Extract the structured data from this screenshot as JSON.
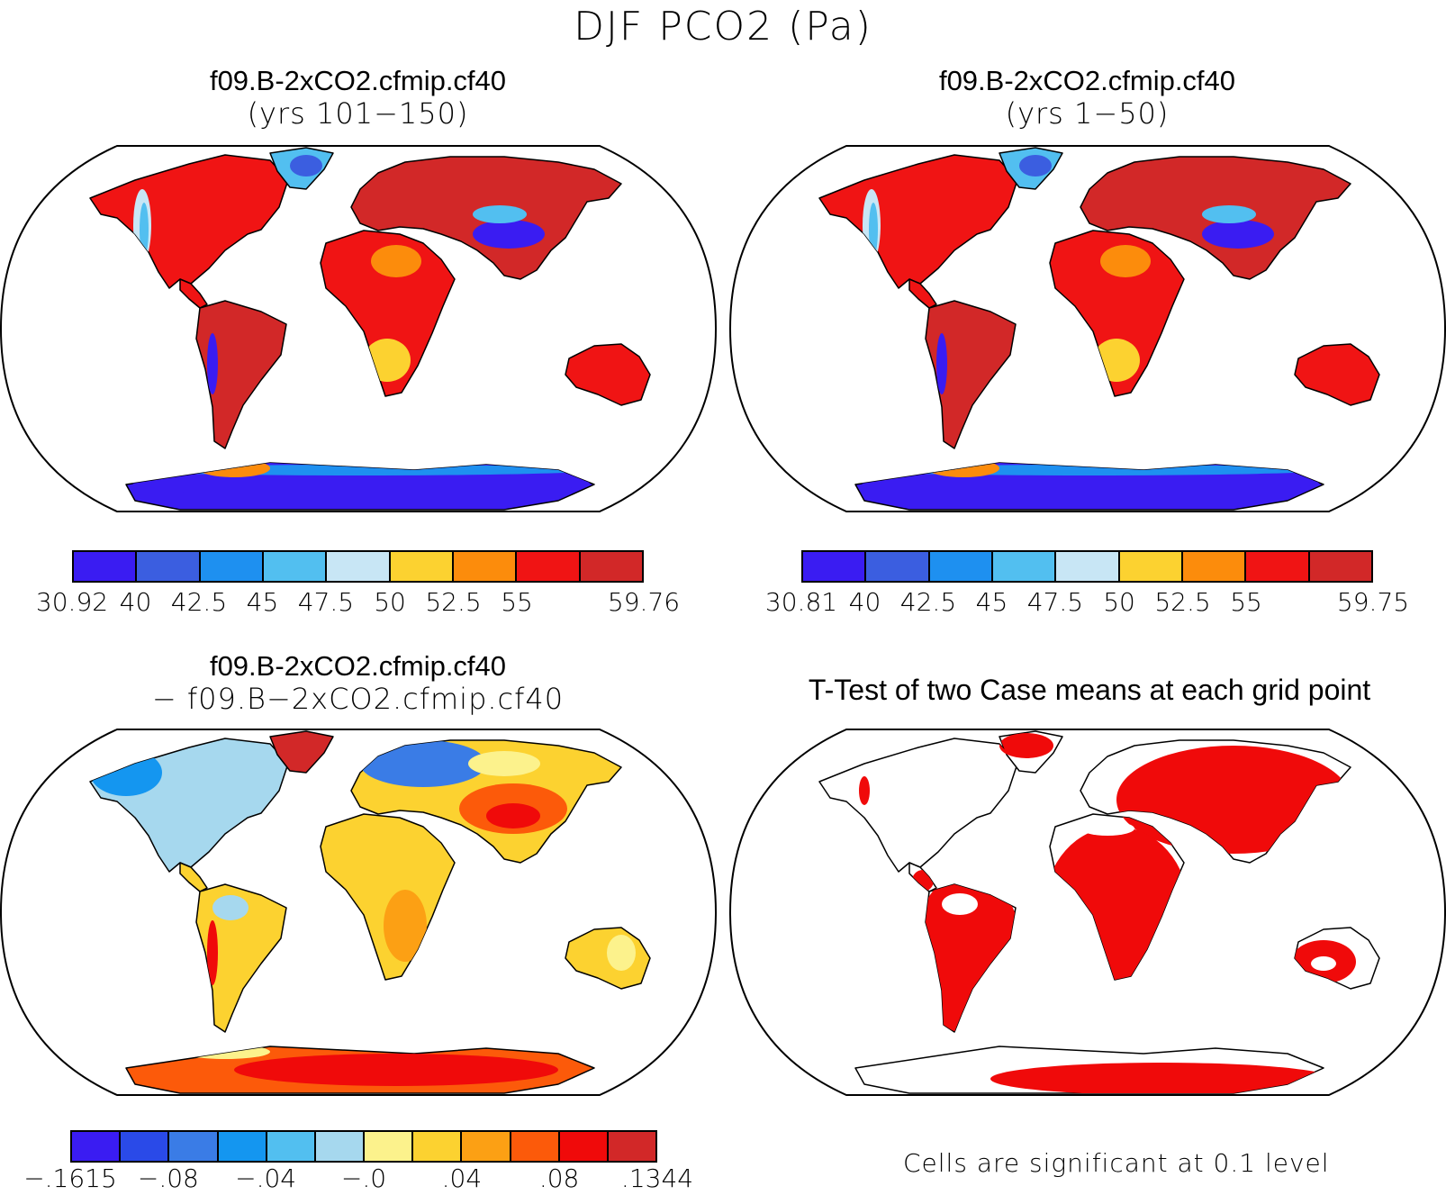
{
  "title": "DJF PCO2 (Pa)",
  "panels": [
    {
      "title": "f09.B-2xCO2.cfmip.cf40",
      "subtitle": "(yrs 101−150)",
      "colorbar": {
        "colors": [
          "#3a1cf2",
          "#3b5ee0",
          "#1e90f0",
          "#52bff0",
          "#c8e6f5",
          "#fcd230",
          "#fc8c0c",
          "#f01414",
          "#d22828"
        ],
        "labels": [
          "30.92",
          "40",
          "42.5",
          "45",
          "47.5",
          "50",
          "52.5",
          "55",
          "59.76"
        ]
      }
    },
    {
      "title": "f09.B-2xCO2.cfmip.cf40",
      "subtitle": "(yrs 1−50)",
      "colorbar": {
        "colors": [
          "#3a1cf2",
          "#3b5ee0",
          "#1e90f0",
          "#52bff0",
          "#c8e6f5",
          "#fcd230",
          "#fc8c0c",
          "#f01414",
          "#d22828"
        ],
        "labels": [
          "30.81",
          "40",
          "42.5",
          "45",
          "47.5",
          "50",
          "52.5",
          "55",
          "59.75"
        ]
      }
    },
    {
      "title": "f09.B-2xCO2.cfmip.cf40",
      "subtitle": "− f09.B−2xCO2.cfmip.cf40",
      "colorbar": {
        "colors": [
          "#3a1cf2",
          "#2a4ae8",
          "#3a7ce6",
          "#1496f0",
          "#52bff0",
          "#a6d8ee",
          "#fcf28c",
          "#fcd230",
          "#fca014",
          "#fc5a0a",
          "#f00a0a",
          "#d22828"
        ],
        "labels": [
          "−.1615",
          "−.08",
          "−.04",
          "−.0",
          ".04",
          ".08",
          ".1344"
        ]
      }
    },
    {
      "title": "T-Test of two Case means at each grid point",
      "note": "Cells are significant at 0.1 level",
      "significance_color": "#f00a0a"
    }
  ]
}
